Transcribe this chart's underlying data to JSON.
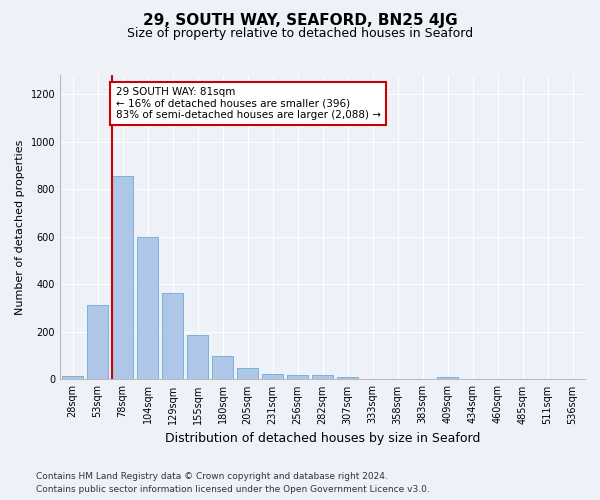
{
  "title": "29, SOUTH WAY, SEAFORD, BN25 4JG",
  "subtitle": "Size of property relative to detached houses in Seaford",
  "xlabel": "Distribution of detached houses by size in Seaford",
  "ylabel": "Number of detached properties",
  "footnote1": "Contains HM Land Registry data © Crown copyright and database right 2024.",
  "footnote2": "Contains public sector information licensed under the Open Government Licence v3.0.",
  "bar_labels": [
    "28sqm",
    "53sqm",
    "78sqm",
    "104sqm",
    "129sqm",
    "155sqm",
    "180sqm",
    "205sqm",
    "231sqm",
    "256sqm",
    "282sqm",
    "307sqm",
    "333sqm",
    "358sqm",
    "383sqm",
    "409sqm",
    "434sqm",
    "460sqm",
    "485sqm",
    "511sqm",
    "536sqm"
  ],
  "bar_values": [
    15,
    315,
    855,
    600,
    365,
    185,
    100,
    47,
    22,
    18,
    18,
    10,
    0,
    0,
    0,
    12,
    0,
    0,
    0,
    0,
    0
  ],
  "bar_color": "#aec6e8",
  "bar_edge_color": "#6aaad4",
  "annotation_text": "29 SOUTH WAY: 81sqm\n← 16% of detached houses are smaller (396)\n83% of semi-detached houses are larger (2,088) →",
  "annotation_box_color": "#ffffff",
  "annotation_box_edge_color": "#cc0000",
  "vline_color": "#cc0000",
  "vline_x_bar_index": 2,
  "ylim": [
    0,
    1280
  ],
  "yticks": [
    0,
    200,
    400,
    600,
    800,
    1000,
    1200
  ],
  "background_color": "#eef2f8",
  "axes_background": "#eef2f8",
  "grid_color": "#ffffff",
  "title_fontsize": 11,
  "subtitle_fontsize": 9,
  "xlabel_fontsize": 9,
  "ylabel_fontsize": 8,
  "tick_fontsize": 7,
  "annotation_fontsize": 7.5,
  "footnote_fontsize": 6.5
}
